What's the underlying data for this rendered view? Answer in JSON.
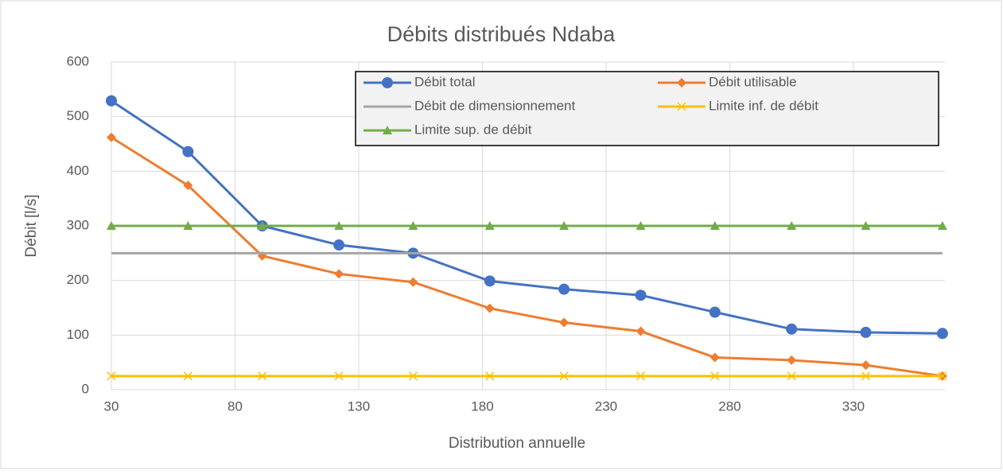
{
  "chart_data": {
    "type": "line",
    "title": "Débits distribués Ndaba",
    "x_label": "Distribution annuelle",
    "y_label": "Débit [l/s]",
    "x": [
      30,
      61,
      91,
      122,
      152,
      183,
      213,
      244,
      274,
      305,
      335,
      366
    ],
    "series": [
      {
        "name": "Débit total",
        "color": "#4472c4",
        "marker": "circle",
        "values": [
          529,
          436,
          300,
          265,
          250,
          199,
          184,
          173,
          142,
          111,
          105,
          103
        ]
      },
      {
        "name": "Débit utilisable",
        "color": "#ed7d31",
        "marker": "diamond",
        "values": [
          462,
          374,
          245,
          212,
          197,
          149,
          123,
          107,
          59,
          54,
          45,
          25
        ]
      },
      {
        "name": "Débit de dimensionnement",
        "color": "#a5a5a5",
        "marker": "none",
        "values": [
          250,
          250,
          250,
          250,
          250,
          250,
          250,
          250,
          250,
          250,
          250,
          250
        ]
      },
      {
        "name": "Limite inf. de débit",
        "color": "#ffc000",
        "marker": "x",
        "values": [
          25,
          25,
          25,
          25,
          25,
          25,
          25,
          25,
          25,
          25,
          25,
          25
        ]
      },
      {
        "name": "Limite sup. de débit",
        "color": "#70ad47",
        "marker": "triangle",
        "values": [
          300,
          300,
          300,
          300,
          300,
          300,
          300,
          300,
          300,
          300,
          300,
          300
        ]
      }
    ],
    "xlim": [
      30,
      367
    ],
    "xticks": [
      30,
      80,
      130,
      180,
      230,
      280,
      330
    ],
    "ylim": [
      0,
      600
    ],
    "yticks": [
      0,
      100,
      200,
      300,
      400,
      500,
      600
    ],
    "grid": true,
    "legend": "top-right"
  }
}
